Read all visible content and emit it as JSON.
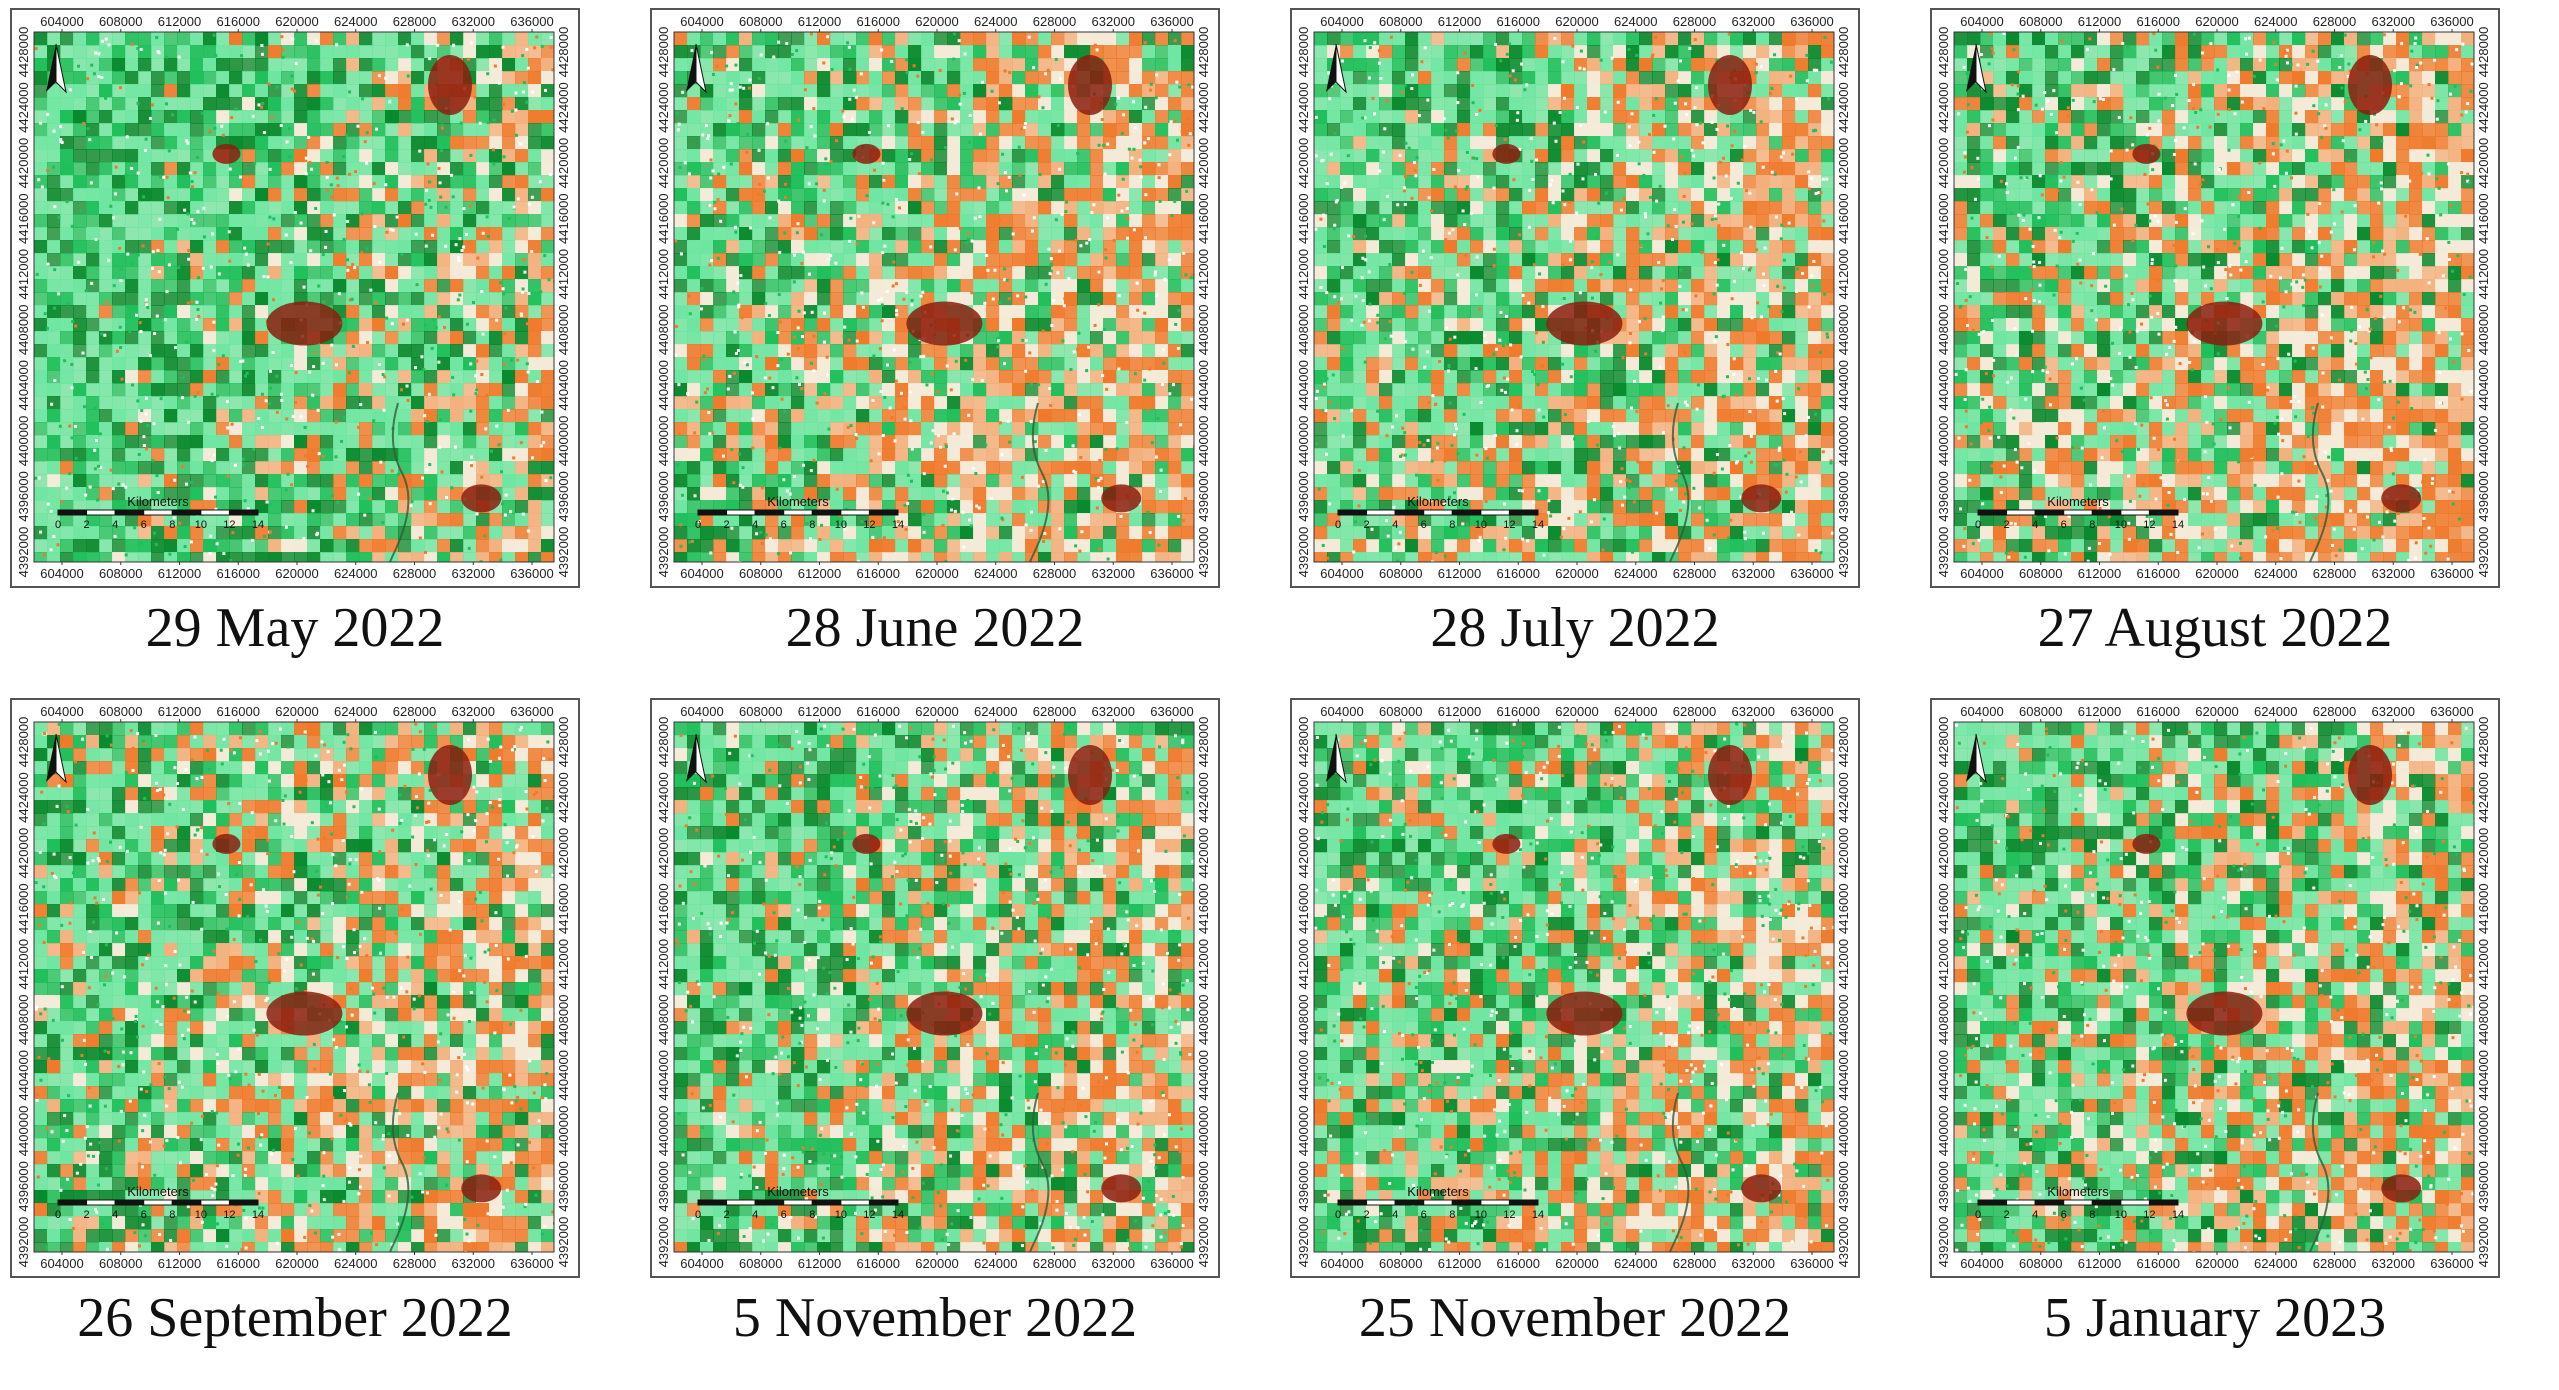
{
  "palette": {
    "dark_green": "#0a8a2e",
    "green": "#1fbf5b",
    "light_green": "#6ee6a1",
    "pale": "#f4ead8",
    "light_orange": "#f3b07d",
    "orange": "#ef7a2c",
    "dark_red": "#8b1e0f"
  },
  "x_ticks": [
    "604000",
    "608000",
    "612000",
    "616000",
    "620000",
    "624000",
    "628000",
    "632000",
    "636000"
  ],
  "y_ticks": [
    "4428000",
    "4424000",
    "4420000",
    "4416000",
    "4412000",
    "4408000",
    "4404000",
    "4400000",
    "4396000",
    "4392000"
  ],
  "scalebar": {
    "label": "Kilometers",
    "numbers": [
      "0",
      "2",
      "4",
      "6",
      "8",
      "10",
      "12",
      "14"
    ]
  },
  "panels": [
    {
      "caption": "29 May 2022",
      "green_share": 0.66
    },
    {
      "caption": "28 June 2022",
      "green_share": 0.52
    },
    {
      "caption": "28 July 2022",
      "green_share": 0.55
    },
    {
      "caption": "27 August 2022",
      "green_share": 0.5
    },
    {
      "caption": "26 September 2022",
      "green_share": 0.56
    },
    {
      "caption": "5 November 2022",
      "green_share": 0.58
    },
    {
      "caption": "25 November 2022",
      "green_share": 0.56
    },
    {
      "caption": "5 January 2023",
      "green_share": 0.57
    }
  ]
}
